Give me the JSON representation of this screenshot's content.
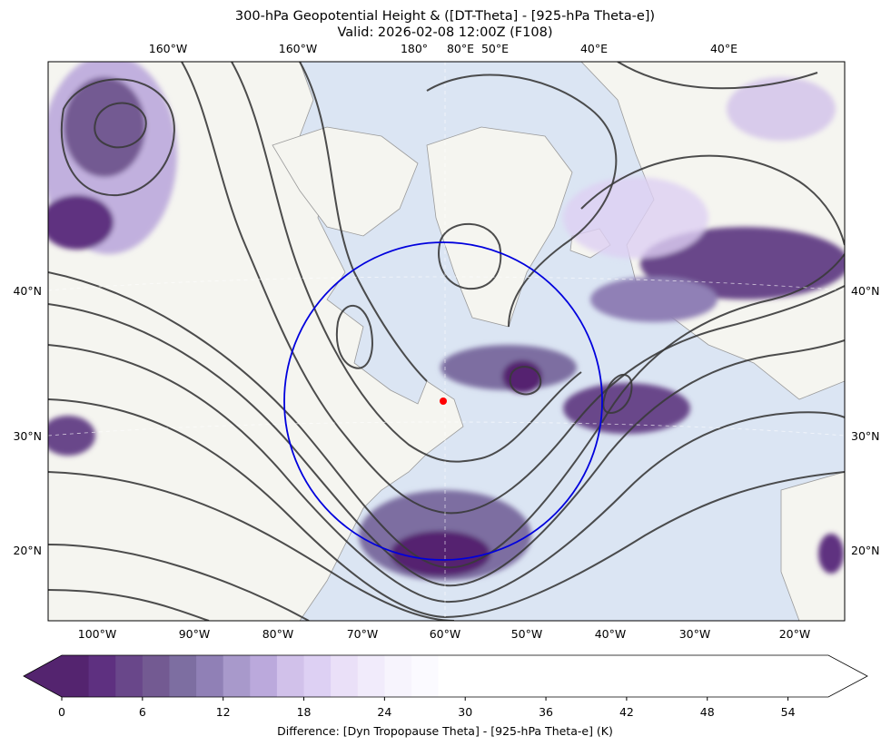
{
  "chart_data": {
    "type": "heatmap",
    "title": "300-hPa Geopotential Height & ([DT-Theta] - [925-hPa Theta-e])",
    "subtitle": "Valid: 2026-02-08 12:00Z (F108)",
    "projection_note": "polar map with overlaid height contours",
    "x_axis_bottom_ticks": [
      "100°W",
      "90°W",
      "80°W",
      "70°W",
      "60°W",
      "50°W",
      "40°W",
      "30°W",
      "20°W"
    ],
    "x_axis_top_ticks": [
      "160°W",
      "160°W",
      "180°",
      "80°E",
      "50°E",
      "40°E",
      "40°E"
    ],
    "y_axis_left_ticks": [
      "40°N",
      "30°N",
      "20°N"
    ],
    "y_axis_right_ticks": [
      "40°N",
      "30°N",
      "20°N"
    ],
    "colorbar": {
      "label": "Difference: [Dyn Tropopause Theta] - [925-hPa Theta-e] (K)",
      "ticks": [
        "0",
        "6",
        "12",
        "18",
        "24",
        "30",
        "36",
        "42",
        "48",
        "54"
      ],
      "range": [
        0,
        57
      ],
      "extend": "both",
      "step": 2,
      "colors": [
        "#54246f",
        "#5e3080",
        "#69478a",
        "#735a92",
        "#7d6ea1",
        "#9080b6",
        "#a899cb",
        "#bba9dc",
        "#d1c1ea",
        "#ddd0f3",
        "#eae0f8",
        "#f1ebfb",
        "#f7f4fd",
        "#fbfaff",
        "#ffffff"
      ]
    },
    "marker": {
      "type": "point",
      "color": "#ff0000"
    },
    "circle": {
      "color": "#0000dd"
    },
    "contour_color": "#3a3a3a",
    "land_color": "#f5f5f0",
    "ocean_color": "#dbe5f3"
  }
}
